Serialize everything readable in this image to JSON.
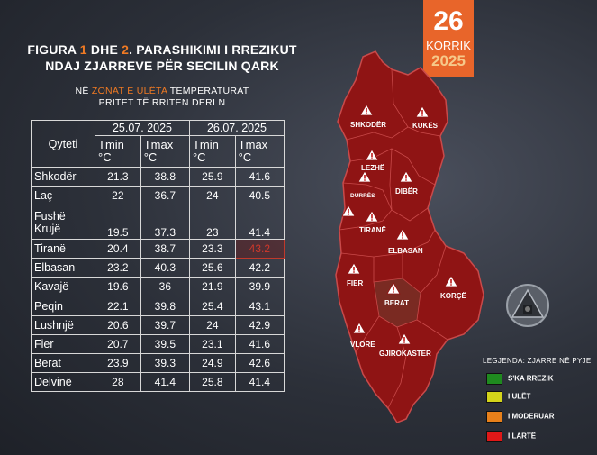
{
  "header": {
    "title_part1": "FIGURA ",
    "title_num1": "1",
    "title_part2": " DHE ",
    "title_num2": "2",
    "title_part3": ". PARASHIKIMI I RREZIKUT",
    "title_line2": "NDAJ ZJARREVE PËR SECILIN QARK",
    "subtitle_prefix": "NË ",
    "subtitle_highlight": "ZONAT E ULËTA",
    "subtitle_suffix": " TEMPERATURAT",
    "subtitle_line2": "PRITET TË RRITEN DERI N"
  },
  "date_badge": {
    "day": "26",
    "month": "KORRIK",
    "year": "2025"
  },
  "table": {
    "city_header": "Qyteti",
    "dates": [
      "25.07. 2025",
      "26.07. 2025"
    ],
    "col_headers": [
      "Tmin °C",
      "Tmax °C",
      "Tmin °C",
      "Tmax °C"
    ],
    "rows": [
      {
        "city": "Shkodër",
        "v": [
          "21.3",
          "38.8",
          "25.9",
          "41.6"
        ]
      },
      {
        "city": "Laç",
        "v": [
          "22",
          "36.7",
          "24",
          "40.5"
        ]
      },
      {
        "city": "Fushë Krujë",
        "v": [
          "19.5",
          "37.3",
          "23",
          "41.4"
        ]
      },
      {
        "city": "Tiranë",
        "v": [
          "20.4",
          "38.7",
          "23.3",
          "43.2"
        ]
      },
      {
        "city": "Elbasan",
        "v": [
          "23.2",
          "40.3",
          "25.6",
          "42.2"
        ]
      },
      {
        "city": "Kavajë",
        "v": [
          "19.6",
          "36",
          "21.9",
          "39.9"
        ]
      },
      {
        "city": "Peqin",
        "v": [
          "22.1",
          "39.8",
          "25.4",
          "43.1"
        ]
      },
      {
        "city": "Lushnjë",
        "v": [
          "20.6",
          "39.7",
          "24",
          "42.9"
        ]
      },
      {
        "city": "Fier",
        "v": [
          "20.7",
          "39.5",
          "23.1",
          "41.6"
        ]
      },
      {
        "city": "Berat",
        "v": [
          "23.9",
          "39.3",
          "24.9",
          "42.6"
        ]
      },
      {
        "city": "Delvinë",
        "v": [
          "28",
          "41.4",
          "25.8",
          "41.4"
        ]
      }
    ]
  },
  "map": {
    "regions": [
      "SHKODËR",
      "KUKËS",
      "LEZHË",
      "DURRËS",
      "DIBËR",
      "TIRANË",
      "ELBASAN",
      "FIER",
      "BERAT",
      "KORÇË",
      "VLORË",
      "GJIROKASTËR"
    ],
    "colors": {
      "high": "#8f1414",
      "berat": "#7a2a22",
      "border": "#c94a4a"
    }
  },
  "legend": {
    "title": "LEGJENDA: ZJARRE NË PYJE",
    "items": [
      {
        "label": "S'KA RREZIK",
        "color": "#1f8a1f"
      },
      {
        "label": "I ULËT",
        "color": "#d4d41a"
      },
      {
        "label": "I MODERUAR",
        "color": "#e8801a"
      },
      {
        "label": "I LARTË",
        "color": "#e01818"
      }
    ]
  }
}
